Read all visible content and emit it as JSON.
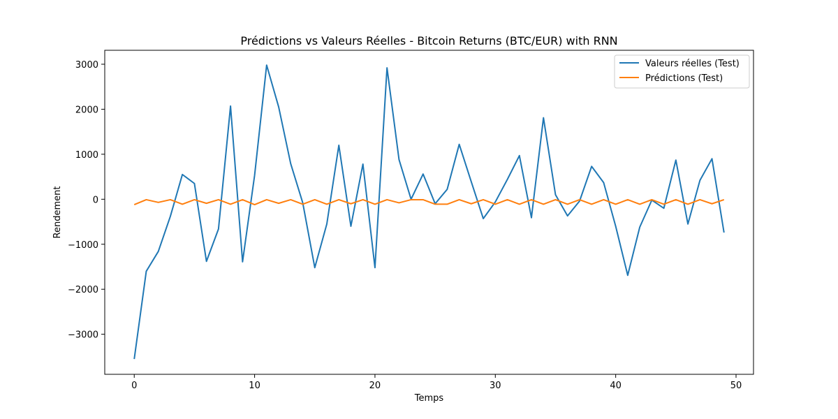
{
  "chart_data": {
    "type": "line",
    "title": "Prédictions vs Valeurs Réelles - Bitcoin Returns (BTC/EUR) with RNN",
    "xlabel": "Temps",
    "ylabel": "Rendement",
    "xlim": [
      -2.45,
      51.45
    ],
    "ylim": [
      -3890,
      3310
    ],
    "xticks": [
      0,
      10,
      20,
      30,
      40,
      50
    ],
    "yticks": [
      -3000,
      -2000,
      -1000,
      0,
      1000,
      2000,
      3000
    ],
    "xtick_labels": [
      "0",
      "10",
      "20",
      "30",
      "40",
      "50"
    ],
    "ytick_labels": [
      "−3000",
      "−2000",
      "−1000",
      "0",
      "1000",
      "2000",
      "3000"
    ],
    "grid": false,
    "legend_position": "top-right",
    "x": [
      0,
      1,
      2,
      3,
      4,
      5,
      6,
      7,
      8,
      9,
      10,
      11,
      12,
      13,
      14,
      15,
      16,
      17,
      18,
      19,
      20,
      21,
      22,
      23,
      24,
      25,
      26,
      27,
      28,
      29,
      30,
      31,
      32,
      33,
      34,
      35,
      36,
      37,
      38,
      39,
      40,
      41,
      42,
      43,
      44,
      45,
      46,
      47,
      48,
      49
    ],
    "series": [
      {
        "name": "Valeurs réelles (Test)",
        "color": "#1f77b4",
        "values": [
          -3550,
          -1600,
          -1160,
          -380,
          550,
          350,
          -1380,
          -660,
          2070,
          -1390,
          530,
          2980,
          2050,
          790,
          -80,
          -1520,
          -550,
          1200,
          -600,
          780,
          -1520,
          2920,
          880,
          0,
          560,
          -100,
          220,
          1220,
          390,
          -430,
          -60,
          440,
          970,
          -410,
          1810,
          100,
          -370,
          -40,
          730,
          370,
          -600,
          -1690,
          -620,
          -20,
          -200,
          870,
          -550,
          420,
          900,
          -740
        ]
      },
      {
        "name": "Prédictions (Test)",
        "color": "#ff7f0e",
        "values": [
          -120,
          -10,
          -70,
          -10,
          -110,
          -10,
          -90,
          -10,
          -110,
          -10,
          -120,
          -10,
          -90,
          -10,
          -110,
          -10,
          -110,
          -10,
          -100,
          -10,
          -110,
          -10,
          -80,
          -10,
          -10,
          -110,
          -110,
          -10,
          -100,
          -10,
          -110,
          -10,
          -110,
          -10,
          -110,
          -10,
          -110,
          -10,
          -110,
          -10,
          -110,
          -10,
          -110,
          -10,
          -110,
          -10,
          -110,
          -10,
          -100,
          -10
        ]
      }
    ]
  }
}
